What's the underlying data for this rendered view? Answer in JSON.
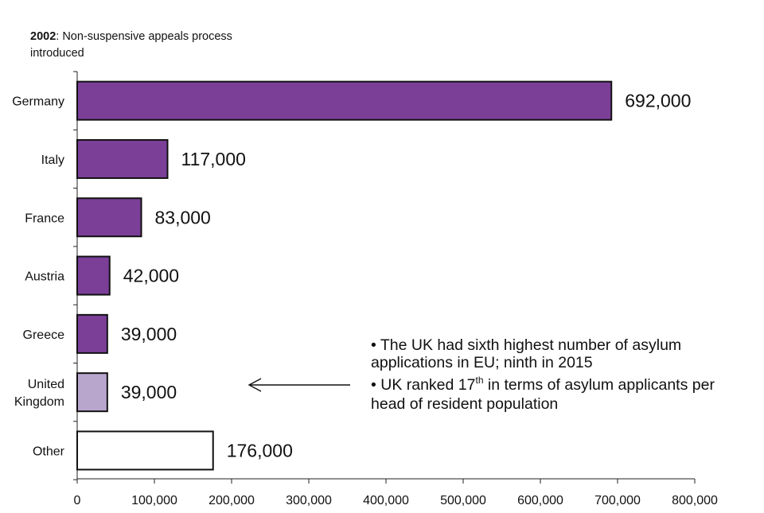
{
  "chart_data": {
    "type": "bar",
    "orientation": "horizontal",
    "title_year": "2002",
    "title_text": ": Non-suspensive appeals process",
    "title_line2": "introduced",
    "categories": [
      {
        "label_lines": [
          "Germany"
        ],
        "value": 692000,
        "value_label": "692,000",
        "color": "#7b3f98"
      },
      {
        "label_lines": [
          "Italy"
        ],
        "value": 117000,
        "value_label": "117,000",
        "color": "#7b3f98"
      },
      {
        "label_lines": [
          "France"
        ],
        "value": 83000,
        "value_label": "83,000",
        "color": "#7b3f98"
      },
      {
        "label_lines": [
          "Austria"
        ],
        "value": 42000,
        "value_label": "42,000",
        "color": "#7b3f98"
      },
      {
        "label_lines": [
          "Greece"
        ],
        "value": 39000,
        "value_label": "39,000",
        "color": "#7b3f98"
      },
      {
        "label_lines": [
          "United",
          "Kingdom"
        ],
        "value": 39000,
        "value_label": "39,000",
        "color": "#b8a6cc"
      },
      {
        "label_lines": [
          "Other"
        ],
        "value": 176000,
        "value_label": "176,000",
        "color": "#ffffff"
      }
    ],
    "xlim": [
      0,
      800000
    ],
    "xticks": [
      0,
      100000,
      200000,
      300000,
      400000,
      500000,
      600000,
      700000,
      800000
    ],
    "xtick_labels": [
      "0",
      "100,000",
      "200,000",
      "300,000",
      "400,000",
      "500,000",
      "600,000",
      "700,000",
      "800,000"
    ],
    "grid": false,
    "annotation": {
      "line1": "• The UK had sixth highest number of asylum",
      "line2": "applications in EU; ninth in 2015",
      "line3_pre": "• UK ranked 17",
      "line3_sup": "th",
      "line3_post": " in terms of asylum applicants per",
      "line4": "head of resident population",
      "arrow_target": "United Kingdom"
    }
  }
}
